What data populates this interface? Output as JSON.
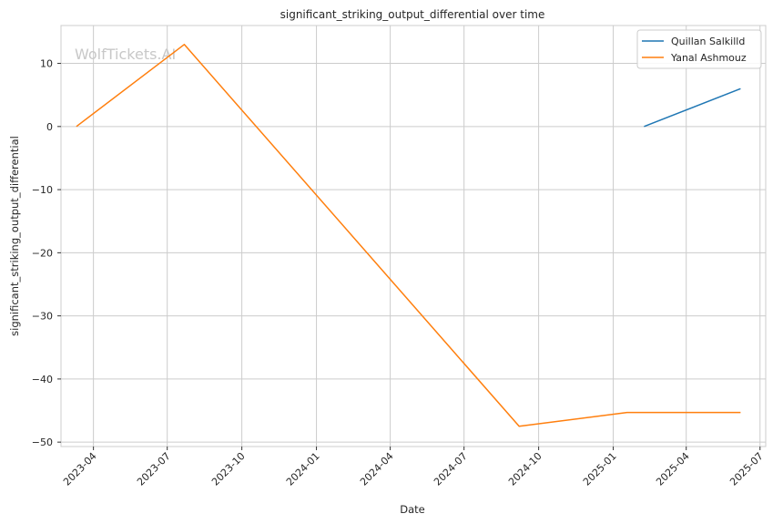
{
  "chart_data": {
    "type": "line",
    "title": "significant_striking_output_differential over time",
    "xlabel": "Date",
    "ylabel": "significant_striking_output_differential",
    "watermark": "WolfTickets.AI",
    "x_ticks": [
      "2023-04",
      "2023-07",
      "2023-10",
      "2024-01",
      "2024-04",
      "2024-07",
      "2024-10",
      "2025-01",
      "2025-04",
      "2025-07"
    ],
    "y_ticks": [
      10,
      0,
      -10,
      -20,
      -30,
      -40,
      -50
    ],
    "xlim": [
      "2023-02-20",
      "2025-07-08"
    ],
    "ylim": [
      -50.7,
      16.0
    ],
    "grid": true,
    "legend_position": "top-right",
    "series": [
      {
        "name": "Quillan Salkilld",
        "color": "#1f77b4",
        "points": [
          {
            "x": "2025-02-08",
            "y": 0
          },
          {
            "x": "2025-06-07",
            "y": 6
          }
        ]
      },
      {
        "name": "Yanal Ashmouz",
        "color": "#ff7f0e",
        "points": [
          {
            "x": "2023-03-11",
            "y": 0
          },
          {
            "x": "2023-07-22",
            "y": 13
          },
          {
            "x": "2024-09-07",
            "y": -47.5
          },
          {
            "x": "2025-01-18",
            "y": -45.3
          },
          {
            "x": "2025-06-07",
            "y": -45.3
          }
        ]
      }
    ]
  }
}
